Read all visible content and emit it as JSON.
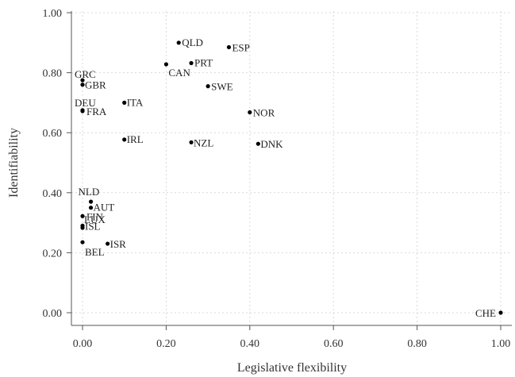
{
  "chart_data": {
    "type": "scatter",
    "title": "",
    "xlabel": "Legislative flexibility",
    "ylabel": "Identifiability",
    "xlim": [
      0.0,
      1.0
    ],
    "ylim": [
      0.0,
      1.0
    ],
    "grid": true,
    "legend": "none",
    "x_ticks": [
      "0.00",
      "0.20",
      "0.40",
      "0.60",
      "0.80",
      "1.00"
    ],
    "y_ticks": [
      "0.00",
      "0.20",
      "0.40",
      "0.60",
      "0.80",
      "1.00"
    ],
    "marker_color": "#000000",
    "points": [
      {
        "label": "QLD",
        "x": 0.23,
        "y": 0.9
      },
      {
        "label": "ESP",
        "x": 0.35,
        "y": 0.885
      },
      {
        "label": "PRT",
        "x": 0.26,
        "y": 0.832
      },
      {
        "label": "CAN",
        "x": 0.2,
        "y": 0.828
      },
      {
        "label": "GRC",
        "x": 0.0,
        "y": 0.775
      },
      {
        "label": "GBR",
        "x": 0.0,
        "y": 0.76
      },
      {
        "label": "SWE",
        "x": 0.3,
        "y": 0.755
      },
      {
        "label": "DEU",
        "x": 0.0,
        "y": 0.675
      },
      {
        "label": "ITA",
        "x": 0.1,
        "y": 0.7
      },
      {
        "label": "FRA",
        "x": 0.0,
        "y": 0.672
      },
      {
        "label": "NOR",
        "x": 0.4,
        "y": 0.668
      },
      {
        "label": "IRL",
        "x": 0.1,
        "y": 0.577
      },
      {
        "label": "NZL",
        "x": 0.26,
        "y": 0.568
      },
      {
        "label": "DNK",
        "x": 0.42,
        "y": 0.563
      },
      {
        "label": "NLD",
        "x": 0.02,
        "y": 0.37
      },
      {
        "label": "AUT",
        "x": 0.02,
        "y": 0.35
      },
      {
        "label": "FIN",
        "x": 0.0,
        "y": 0.322
      },
      {
        "label": "ISL",
        "x": 0.0,
        "y": 0.29
      },
      {
        "label": "LUX",
        "x": 0.0,
        "y": 0.283
      },
      {
        "label": "ISR",
        "x": 0.06,
        "y": 0.23
      },
      {
        "label": "BEL",
        "x": 0.0,
        "y": 0.235
      },
      {
        "label": "CHE",
        "x": 1.0,
        "y": 0.0
      }
    ]
  }
}
